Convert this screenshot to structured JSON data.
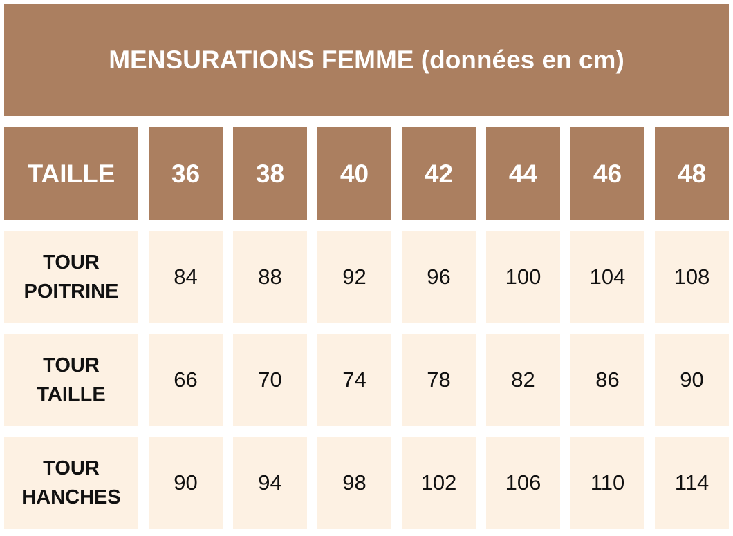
{
  "title": "MENSURATIONS FEMME (données en cm)",
  "table": {
    "header_label": "TAILLE",
    "sizes": [
      "36",
      "38",
      "40",
      "42",
      "44",
      "46",
      "48"
    ],
    "rows": [
      {
        "label_line1": "TOUR",
        "label_line2": "POITRINE",
        "values": [
          "84",
          "88",
          "92",
          "96",
          "100",
          "104",
          "108"
        ]
      },
      {
        "label_line1": "TOUR",
        "label_line2": "TAILLE",
        "values": [
          "66",
          "70",
          "74",
          "78",
          "82",
          "86",
          "90"
        ]
      },
      {
        "label_line1": "TOUR",
        "label_line2": "HANCHES",
        "values": [
          "90",
          "94",
          "98",
          "102",
          "106",
          "110",
          "114"
        ]
      }
    ]
  },
  "colors": {
    "header_bg": "#ab7f60",
    "cell_bg": "#fdf1e3",
    "header_text": "#ffffff",
    "cell_text": "#111111"
  }
}
